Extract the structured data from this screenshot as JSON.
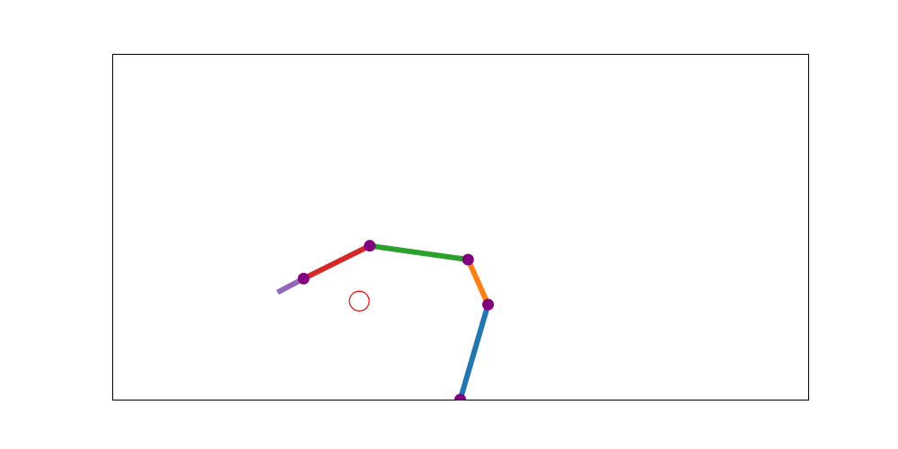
{
  "chart_data": {
    "type": "line",
    "title": "",
    "xlabel": "",
    "ylabel": "",
    "grid": false,
    "axes_visible": false,
    "xlim": [
      -2.0,
      2.0
    ],
    "ylim": [
      0.0,
      2.0
    ],
    "arm": {
      "joints": [
        {
          "name": "joint-0",
          "x": 0.0,
          "y": 0.0
        },
        {
          "name": "joint-1",
          "x": 0.16,
          "y": 0.55
        },
        {
          "name": "joint-2",
          "x": 0.045,
          "y": 0.81
        },
        {
          "name": "joint-3",
          "x": -0.52,
          "y": 0.89
        },
        {
          "name": "joint-4",
          "x": -0.9,
          "y": 0.7
        }
      ],
      "end_effector": {
        "x": -1.05,
        "y": 0.62
      },
      "segments": [
        {
          "name": "link-1",
          "from": 0,
          "to": 1,
          "color": "#1f77b4"
        },
        {
          "name": "link-2",
          "from": 1,
          "to": 2,
          "color": "#ff7f0e"
        },
        {
          "name": "link-3",
          "from": 2,
          "to": 3,
          "color": "#2ca02c"
        },
        {
          "name": "link-4",
          "from": 3,
          "to": 4,
          "color": "#d62728"
        },
        {
          "name": "link-5",
          "from": 4,
          "to": "end",
          "color": "#9467bd"
        }
      ],
      "joint_color": "#800080"
    },
    "target": {
      "x": -0.58,
      "y": 0.57,
      "color": "#ff0000"
    }
  }
}
